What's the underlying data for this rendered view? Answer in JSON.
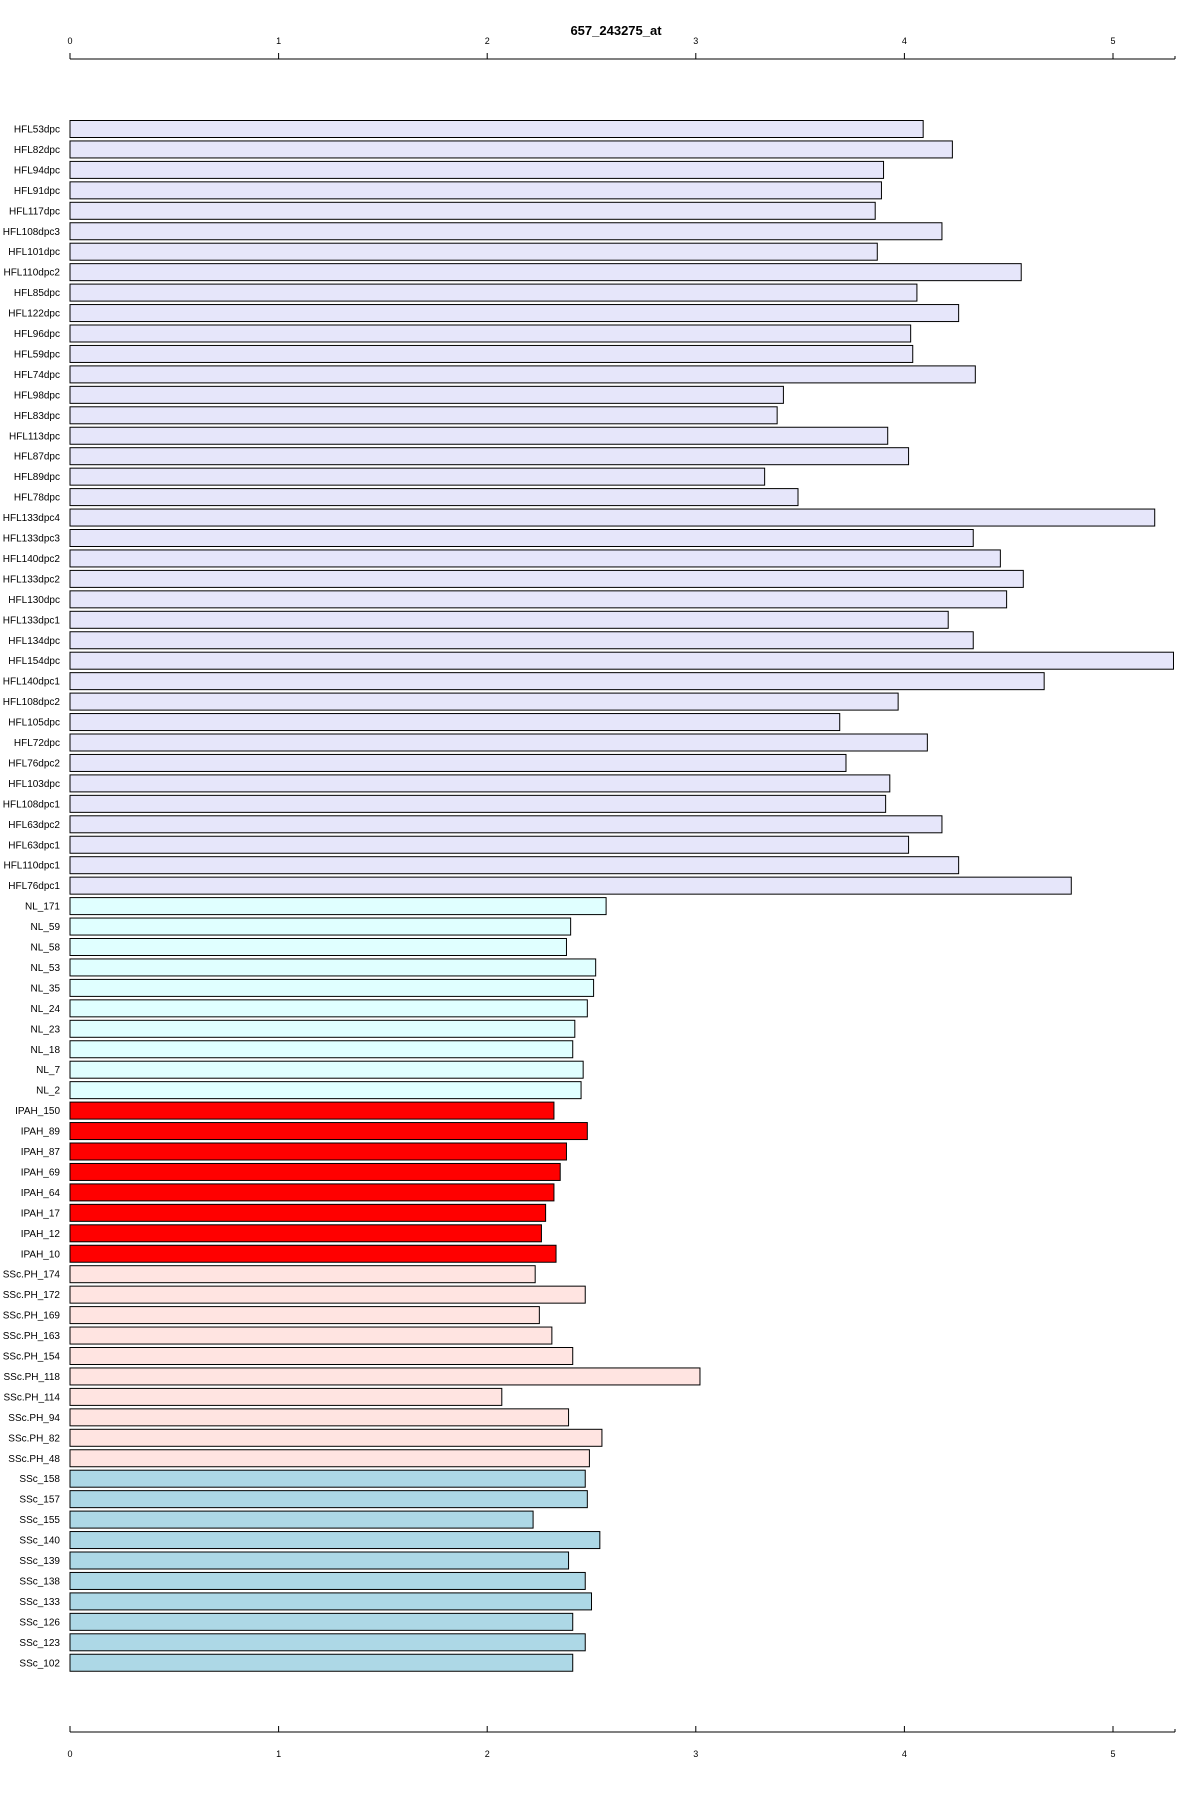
{
  "chart_data": {
    "type": "bar",
    "orientation": "horizontal",
    "title": "657_243275_at",
    "xlabel": "",
    "ylabel": "",
    "xlim": [
      0,
      5.3
    ],
    "x_ticks": [
      0,
      1,
      2,
      3,
      4,
      5
    ],
    "x_tick_labels": [
      "0",
      "1",
      "2",
      "3",
      "4",
      "5"
    ],
    "axes": [
      "top",
      "bottom"
    ],
    "grid": false,
    "legend": "none",
    "group_colors": {
      "HFL": "#e6e6fa",
      "NL": "#e0ffff",
      "IPAH": "#ff0000",
      "SSc.PH": "#ffe4e1",
      "SSc": "#add8e6"
    },
    "categories": [
      "HFL53dpc",
      "HFL82dpc",
      "HFL94dpc",
      "HFL91dpc",
      "HFL117dpc",
      "HFL108dpc3",
      "HFL101dpc",
      "HFL110dpc2",
      "HFL85dpc",
      "HFL122dpc",
      "HFL96dpc",
      "HFL59dpc",
      "HFL74dpc",
      "HFL98dpc",
      "HFL83dpc",
      "HFL113dpc",
      "HFL87dpc",
      "HFL89dpc",
      "HFL78dpc",
      "HFL133dpc4",
      "HFL133dpc3",
      "HFL140dpc2",
      "HFL133dpc2",
      "HFL130dpc",
      "HFL133dpc1",
      "HFL134dpc",
      "HFL154dpc",
      "HFL140dpc1",
      "HFL108dpc2",
      "HFL105dpc",
      "HFL72dpc",
      "HFL76dpc2",
      "HFL103dpc",
      "HFL108dpc1",
      "HFL63dpc2",
      "HFL63dpc1",
      "HFL110dpc1",
      "HFL76dpc1",
      "NL_171",
      "NL_59",
      "NL_58",
      "NL_53",
      "NL_35",
      "NL_24",
      "NL_23",
      "NL_18",
      "NL_7",
      "NL_2",
      "IPAH_150",
      "IPAH_89",
      "IPAH_87",
      "IPAH_69",
      "IPAH_64",
      "IPAH_17",
      "IPAH_12",
      "IPAH_10",
      "SSc.PH_174",
      "SSc.PH_172",
      "SSc.PH_169",
      "SSc.PH_163",
      "SSc.PH_154",
      "SSc.PH_118",
      "SSc.PH_114",
      "SSc.PH_94",
      "SSc.PH_82",
      "SSc.PH_48",
      "SSc_158",
      "SSc_157",
      "SSc_155",
      "SSc_140",
      "SSc_139",
      "SSc_138",
      "SSc_133",
      "SSc_126",
      "SSc_123",
      "SSc_102"
    ],
    "groups": [
      "HFL",
      "HFL",
      "HFL",
      "HFL",
      "HFL",
      "HFL",
      "HFL",
      "HFL",
      "HFL",
      "HFL",
      "HFL",
      "HFL",
      "HFL",
      "HFL",
      "HFL",
      "HFL",
      "HFL",
      "HFL",
      "HFL",
      "HFL",
      "HFL",
      "HFL",
      "HFL",
      "HFL",
      "HFL",
      "HFL",
      "HFL",
      "HFL",
      "HFL",
      "HFL",
      "HFL",
      "HFL",
      "HFL",
      "HFL",
      "HFL",
      "HFL",
      "HFL",
      "HFL",
      "NL",
      "NL",
      "NL",
      "NL",
      "NL",
      "NL",
      "NL",
      "NL",
      "NL",
      "NL",
      "IPAH",
      "IPAH",
      "IPAH",
      "IPAH",
      "IPAH",
      "IPAH",
      "IPAH",
      "IPAH",
      "SSc.PH",
      "SSc.PH",
      "SSc.PH",
      "SSc.PH",
      "SSc.PH",
      "SSc.PH",
      "SSc.PH",
      "SSc.PH",
      "SSc.PH",
      "SSc.PH",
      "SSc",
      "SSc",
      "SSc",
      "SSc",
      "SSc",
      "SSc",
      "SSc",
      "SSc",
      "SSc",
      "SSc"
    ],
    "values": [
      4.09,
      4.23,
      3.9,
      3.89,
      3.86,
      4.18,
      3.87,
      4.56,
      4.06,
      4.26,
      4.03,
      4.04,
      4.34,
      3.42,
      3.39,
      3.92,
      4.02,
      3.33,
      3.49,
      5.2,
      4.33,
      4.46,
      4.57,
      4.49,
      4.21,
      4.33,
      5.29,
      4.67,
      3.97,
      3.69,
      4.11,
      3.72,
      3.93,
      3.91,
      4.18,
      4.02,
      4.26,
      4.8,
      2.57,
      2.4,
      2.38,
      2.52,
      2.51,
      2.48,
      2.42,
      2.41,
      2.46,
      2.45,
      2.32,
      2.48,
      2.38,
      2.35,
      2.32,
      2.28,
      2.26,
      2.33,
      2.23,
      2.47,
      2.25,
      2.31,
      2.41,
      3.02,
      2.07,
      2.39,
      2.55,
      2.49,
      2.47,
      2.48,
      2.22,
      2.54,
      2.39,
      2.47,
      2.5,
      2.41,
      2.47,
      2.41
    ]
  }
}
